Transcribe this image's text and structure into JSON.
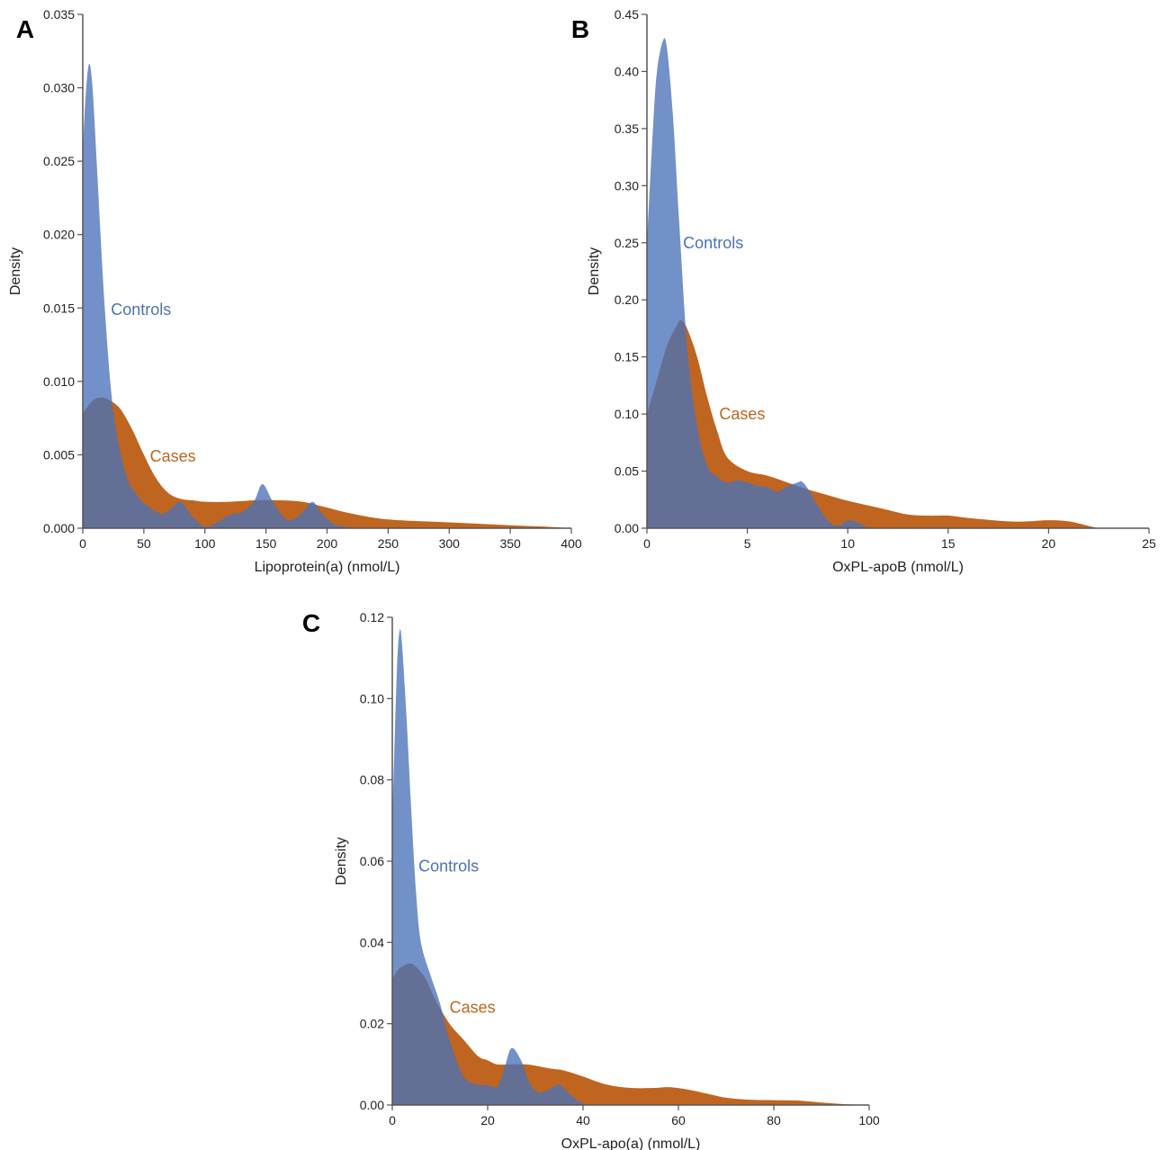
{
  "chart_data": [
    {
      "panel": "A",
      "type": "area",
      "xlabel": "Lipoprotein(a) (nmol/L)",
      "ylabel": "Density",
      "xlim": [
        0,
        400
      ],
      "ylim": [
        0,
        0.035
      ],
      "xticks": [
        0,
        50,
        100,
        150,
        200,
        250,
        300,
        350,
        400
      ],
      "yticks": [
        0.0,
        0.005,
        0.01,
        0.015,
        0.02,
        0.025,
        0.03,
        0.035
      ],
      "ytick_labels": [
        "0.000",
        "0.005",
        "0.010",
        "0.015",
        "0.020",
        "0.025",
        "0.030",
        "0.035"
      ],
      "xtick_labels": [
        "0",
        "50",
        "100",
        "150",
        "200",
        "250",
        "300",
        "350",
        "400"
      ],
      "series": [
        {
          "name": "Cases",
          "color": "#c0651f",
          "x": [
            0,
            5,
            10,
            15,
            20,
            30,
            40,
            50,
            60,
            70,
            80,
            90,
            100,
            120,
            140,
            160,
            180,
            200,
            220,
            250,
            300,
            350,
            380,
            400
          ],
          "y": [
            0.0078,
            0.0084,
            0.0088,
            0.0089,
            0.0088,
            0.0082,
            0.0068,
            0.005,
            0.0034,
            0.0024,
            0.002,
            0.0019,
            0.0018,
            0.0018,
            0.0019,
            0.0019,
            0.0018,
            0.0014,
            0.001,
            0.0006,
            0.0004,
            0.0002,
            0.0001,
            0.0
          ]
        },
        {
          "name": "Controls",
          "color": "#4a72b8",
          "x": [
            0,
            2,
            5,
            8,
            12,
            18,
            25,
            35,
            45,
            55,
            65,
            72,
            80,
            90,
            100,
            110,
            120,
            130,
            140,
            147,
            155,
            165,
            172,
            180,
            188,
            195,
            205,
            215,
            225
          ],
          "y": [
            0.0255,
            0.029,
            0.0316,
            0.03,
            0.024,
            0.015,
            0.008,
            0.0038,
            0.0022,
            0.0014,
            0.001,
            0.0013,
            0.0018,
            0.0008,
            0.0001,
            0.0004,
            0.0009,
            0.0011,
            0.0018,
            0.003,
            0.0019,
            0.0007,
            0.0006,
            0.0011,
            0.0018,
            0.0011,
            0.0003,
            0.0001,
            0.0
          ]
        }
      ],
      "annotations": [
        {
          "text": "Controls",
          "x": 23,
          "y": 0.0149,
          "color": "#4a72b8"
        },
        {
          "text": "Cases",
          "x": 55,
          "y": 0.0049,
          "color": "#c0651f"
        }
      ]
    },
    {
      "panel": "B",
      "type": "area",
      "xlabel": "OxPL-apoB (nmol/L)",
      "ylabel": "Density",
      "xlim": [
        0,
        25
      ],
      "ylim": [
        0,
        0.45
      ],
      "xticks": [
        0,
        5,
        10,
        15,
        20,
        25
      ],
      "yticks": [
        0.0,
        0.05,
        0.1,
        0.15,
        0.2,
        0.25,
        0.3,
        0.35,
        0.4,
        0.45
      ],
      "ytick_labels": [
        "0.00",
        "0.05",
        "0.10",
        "0.15",
        "0.20",
        "0.25",
        "0.30",
        "0.35",
        "0.40",
        "0.45"
      ],
      "xtick_labels": [
        "0",
        "5",
        "10",
        "15",
        "20",
        "25"
      ],
      "series": [
        {
          "name": "Cases",
          "color": "#c0651f",
          "x": [
            0,
            0.5,
            1.0,
            1.5,
            1.7,
            2.0,
            2.5,
            3.0,
            3.5,
            4.0,
            5.0,
            6.0,
            7.0,
            8.0,
            9.0,
            10.0,
            11.0,
            12.0,
            13.0,
            14.0,
            15.0,
            16.0,
            18.0,
            19.0,
            20.0,
            21.0,
            22.0,
            22.5
          ],
          "y": [
            0.1,
            0.13,
            0.16,
            0.178,
            0.182,
            0.175,
            0.15,
            0.115,
            0.085,
            0.062,
            0.05,
            0.046,
            0.04,
            0.034,
            0.029,
            0.024,
            0.02,
            0.016,
            0.012,
            0.011,
            0.011,
            0.009,
            0.006,
            0.006,
            0.007,
            0.006,
            0.002,
            0.0
          ]
        },
        {
          "name": "Controls",
          "color": "#4a72b8",
          "x": [
            0,
            0.3,
            0.5,
            0.8,
            1.0,
            1.3,
            1.6,
            2.0,
            2.5,
            3.0,
            3.5,
            4.0,
            4.5,
            5.0,
            5.5,
            6.0,
            6.5,
            7.0,
            7.5,
            7.7,
            8.0,
            8.5,
            9.0,
            9.5,
            10.0,
            10.5,
            11.0
          ],
          "y": [
            0.25,
            0.35,
            0.4,
            0.427,
            0.42,
            0.36,
            0.27,
            0.16,
            0.09,
            0.055,
            0.045,
            0.04,
            0.042,
            0.04,
            0.037,
            0.036,
            0.032,
            0.037,
            0.04,
            0.041,
            0.035,
            0.02,
            0.007,
            0.002,
            0.007,
            0.005,
            0.0
          ]
        }
      ],
      "annotations": [
        {
          "text": "Controls",
          "x": 1.8,
          "y": 0.25,
          "color": "#4a72b8"
        },
        {
          "text": "Cases",
          "x": 3.6,
          "y": 0.1,
          "color": "#c0651f"
        }
      ]
    },
    {
      "panel": "C",
      "type": "area",
      "xlabel": "OxPL-apo(a) (nmol/L)",
      "ylabel": "Density",
      "xlim": [
        0,
        100
      ],
      "ylim": [
        0,
        0.12
      ],
      "xticks": [
        0,
        20,
        40,
        60,
        80,
        100
      ],
      "yticks": [
        0.0,
        0.02,
        0.04,
        0.06,
        0.08,
        0.1,
        0.12
      ],
      "ytick_labels": [
        "0.00",
        "0.02",
        "0.04",
        "0.06",
        "0.08",
        "0.10",
        "0.12"
      ],
      "xtick_labels": [
        "0",
        "20",
        "40",
        "60",
        "80",
        "100"
      ],
      "series": [
        {
          "name": "Cases",
          "color": "#c0651f",
          "x": [
            0,
            1,
            2,
            3.5,
            5,
            7,
            9,
            12,
            15,
            18,
            20,
            22,
            25,
            28,
            30,
            33,
            36,
            40,
            45,
            50,
            55,
            58,
            62,
            66,
            70,
            75,
            80,
            85,
            90,
            95,
            100
          ],
          "y": [
            0.031,
            0.033,
            0.034,
            0.0348,
            0.034,
            0.031,
            0.026,
            0.02,
            0.016,
            0.012,
            0.011,
            0.01,
            0.01,
            0.01,
            0.0097,
            0.009,
            0.0085,
            0.007,
            0.005,
            0.0042,
            0.0042,
            0.0044,
            0.0038,
            0.0028,
            0.0018,
            0.0013,
            0.0012,
            0.0011,
            0.0006,
            0.0002,
            0.0
          ]
        },
        {
          "name": "Controls",
          "color": "#4a72b8",
          "x": [
            0,
            0.5,
            1,
            1.5,
            2,
            3,
            4,
            5,
            6,
            8,
            10,
            12,
            15,
            18,
            20,
            22,
            23.5,
            25,
            27,
            29,
            31,
            33,
            35,
            37,
            39,
            41
          ],
          "y": [
            0.07,
            0.09,
            0.108,
            0.1165,
            0.114,
            0.095,
            0.072,
            0.052,
            0.04,
            0.032,
            0.025,
            0.016,
            0.007,
            0.005,
            0.005,
            0.0045,
            0.009,
            0.014,
            0.011,
            0.005,
            0.003,
            0.004,
            0.005,
            0.003,
            0.001,
            0.0
          ]
        }
      ],
      "annotations": [
        {
          "text": "Controls",
          "x": 5.5,
          "y": 0.0588,
          "color": "#4a72b8"
        },
        {
          "text": "Cases",
          "x": 12,
          "y": 0.024,
          "color": "#c0651f"
        }
      ]
    }
  ]
}
